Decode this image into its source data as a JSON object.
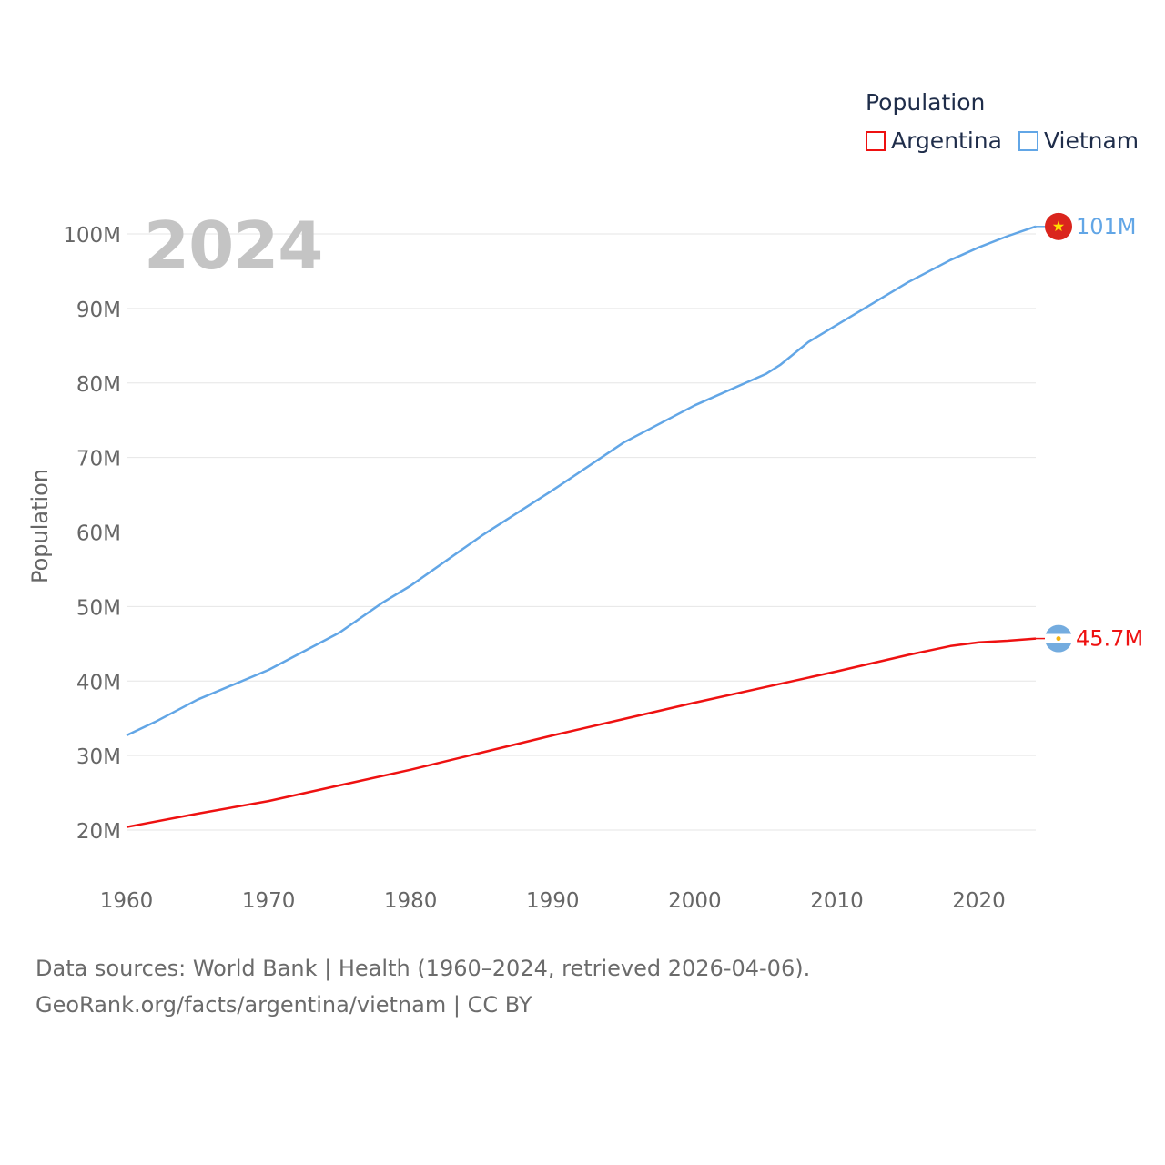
{
  "legend": {
    "title": "Population",
    "items": [
      {
        "label": "Argentina",
        "color": "#ee1111"
      },
      {
        "label": "Vietnam",
        "color": "#62a6e6"
      }
    ]
  },
  "watermark_year": "2024",
  "footer": {
    "line1": "Data sources: World Bank | Health (1960–2024, retrieved 2026-04-06).",
    "line2": "GeoRank.org/facts/argentina/vietnam | CC BY"
  },
  "chart_data": {
    "type": "line",
    "ylabel": "Population",
    "xlabel": "",
    "xlim": [
      1960,
      2024
    ],
    "ylim": [
      15000000,
      102000000
    ],
    "x_ticks": [
      "1960",
      "1970",
      "1980",
      "1990",
      "2000",
      "2010",
      "2020"
    ],
    "y_ticks": [
      "20M",
      "30M",
      "40M",
      "50M",
      "60M",
      "70M",
      "80M",
      "90M",
      "100M"
    ],
    "grid": true,
    "series": [
      {
        "name": "Argentina",
        "color": "#ee1111",
        "end_label": "45.7M",
        "flag": "argentina-flag-icon",
        "x": [
          1960,
          1965,
          1970,
          1975,
          1980,
          1985,
          1990,
          1995,
          2000,
          2005,
          2010,
          2015,
          2018,
          2020,
          2022,
          2024
        ],
        "values": [
          20400000,
          22200000,
          23900000,
          26000000,
          28100000,
          30400000,
          32700000,
          34900000,
          37100000,
          39200000,
          41300000,
          43500000,
          44700000,
          45200000,
          45400000,
          45700000
        ]
      },
      {
        "name": "Vietnam",
        "color": "#62a6e6",
        "end_label": "101M",
        "flag": "vietnam-flag-icon",
        "x": [
          1960,
          1962,
          1965,
          1970,
          1975,
          1978,
          1980,
          1985,
          1990,
          1995,
          2000,
          2005,
          2006,
          2008,
          2010,
          2015,
          2018,
          2020,
          2022,
          2024
        ],
        "values": [
          32700000,
          34500000,
          37500000,
          41500000,
          46500000,
          50500000,
          52800000,
          59500000,
          65600000,
          72000000,
          77000000,
          81200000,
          82400000,
          85500000,
          87800000,
          93500000,
          96500000,
          98200000,
          99700000,
          101000000
        ]
      }
    ]
  }
}
